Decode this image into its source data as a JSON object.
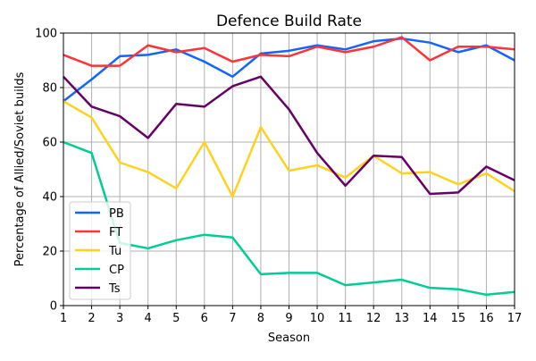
{
  "chart_data": {
    "type": "line",
    "title": "Defence Build Rate",
    "xlabel": "Season",
    "ylabel": "Percentage of Allied/Soviet builds",
    "xlim": [
      1,
      17
    ],
    "ylim": [
      0,
      100
    ],
    "grid": true,
    "legend_position": "lower-left",
    "x": [
      1,
      2,
      3,
      4,
      5,
      6,
      7,
      8,
      9,
      10,
      11,
      12,
      13,
      14,
      15,
      16,
      17
    ],
    "xticks": [
      "1",
      "2",
      "3",
      "4",
      "5",
      "6",
      "7",
      "8",
      "9",
      "10",
      "11",
      "12",
      "13",
      "14",
      "15",
      "16",
      "17"
    ],
    "yticks": [
      "0",
      "20",
      "40",
      "60",
      "80",
      "100"
    ],
    "series": [
      {
        "name": "PB",
        "color": "#1465ff",
        "values": [
          75,
          83,
          91.5,
          92,
          94,
          89.5,
          84,
          92.5,
          93.5,
          95.5,
          94,
          97,
          98,
          96.5,
          93,
          95.5,
          90
        ]
      },
      {
        "name": "FT",
        "color": "#ff3338",
        "values": [
          92,
          88,
          88,
          95.5,
          93,
          94.5,
          89.5,
          92,
          91.5,
          95,
          93,
          95,
          98.5,
          90,
          95,
          95,
          94
        ]
      },
      {
        "name": "Tu",
        "color": "#ffd21f",
        "values": [
          75,
          69,
          52.5,
          49,
          43,
          60,
          40,
          65.5,
          49.5,
          51.5,
          47,
          55,
          48.5,
          49,
          44.5,
          48.5,
          42
        ]
      },
      {
        "name": "CP",
        "color": "#00cc96",
        "values": [
          60,
          56,
          23,
          21,
          24,
          26,
          25,
          11.5,
          12,
          12,
          7.5,
          8.5,
          9.5,
          6.5,
          6,
          4,
          5
        ]
      },
      {
        "name": "Ts",
        "color": "#660066",
        "values": [
          84,
          73,
          69.5,
          61.5,
          74,
          73,
          80.5,
          84,
          72,
          56,
          44,
          55,
          54.5,
          41,
          41.5,
          51,
          46
        ]
      }
    ]
  }
}
